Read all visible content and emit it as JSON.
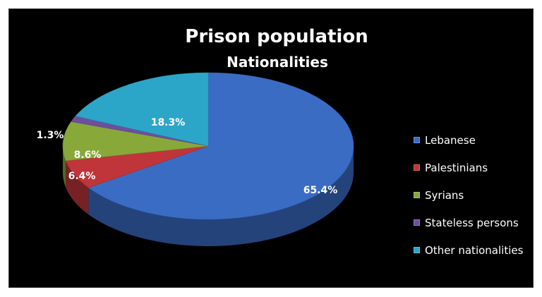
{
  "chart_data": {
    "type": "pie",
    "title": "Prison population",
    "subtitle": "Nationalities",
    "slices": [
      {
        "label": "Lebanese",
        "value": 65.4,
        "value_label": "65.4%",
        "color": "#3a6cc4"
      },
      {
        "label": "Palestinians",
        "value": 6.4,
        "value_label": "6.4%",
        "color": "#c0353a"
      },
      {
        "label": "Syrians",
        "value": 8.6,
        "value_label": "8.6%",
        "color": "#88a83a"
      },
      {
        "label": "Stateless persons",
        "value": 1.3,
        "value_label": "1.3%",
        "color": "#6e4e9e"
      },
      {
        "label": "Other nationalities",
        "value": 18.3,
        "value_label": "18.3%",
        "color": "#2ca6c8"
      }
    ],
    "style": "3d-pie",
    "legend_position": "right",
    "background": "#000000"
  }
}
